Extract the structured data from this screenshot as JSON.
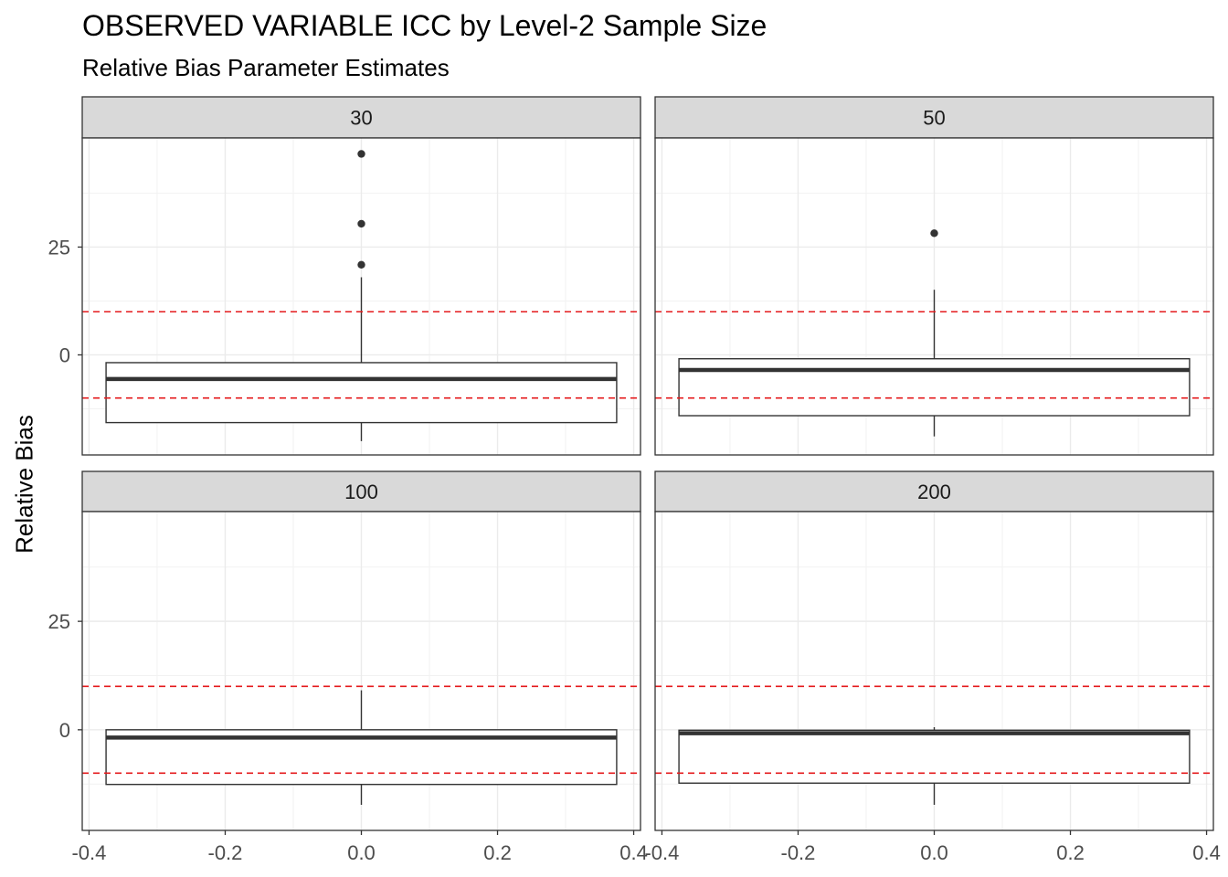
{
  "title": "OBSERVED VARIABLE ICC by Level-2 Sample Size",
  "subtitle": "Relative Bias Parameter Estimates",
  "ylabel": "Relative Bias",
  "chart_data": {
    "type": "boxplot",
    "facet_layout": "2x2 grid",
    "x_ticks": [
      "-0.4",
      "-0.2",
      "0.0",
      "0.2",
      "0.4"
    ],
    "xlim": [
      -0.41,
      0.41
    ],
    "y_ticks": [
      0,
      25
    ],
    "y_tick_labels": [
      "0",
      "25"
    ],
    "ylim": [
      -23.2,
      50.3
    ],
    "reference_lines": {
      "values": [
        -10,
        10
      ],
      "color": "#e41a1c",
      "style": "dashed"
    },
    "grid": true,
    "facets": [
      {
        "label": "30",
        "box": {
          "whisker_low": -20.0,
          "q1": -15.7,
          "median": -5.6,
          "q3": -1.8,
          "whisker_high": 18.0
        },
        "outliers": [
          20.9,
          30.4,
          46.6
        ]
      },
      {
        "label": "50",
        "box": {
          "whisker_low": -18.9,
          "q1": -14.1,
          "median": -3.5,
          "q3": -0.9,
          "whisker_high": 15.1
        },
        "outliers": [
          28.2
        ]
      },
      {
        "label": "100",
        "box": {
          "whisker_low": -17.3,
          "q1": -12.6,
          "median": -1.8,
          "q3": 0.0,
          "whisker_high": 9.1
        },
        "outliers": []
      },
      {
        "label": "200",
        "box": {
          "whisker_low": -17.3,
          "q1": -12.3,
          "median": -0.8,
          "q3": -0.1,
          "whisker_high": 0.6
        },
        "outliers": []
      }
    ]
  }
}
